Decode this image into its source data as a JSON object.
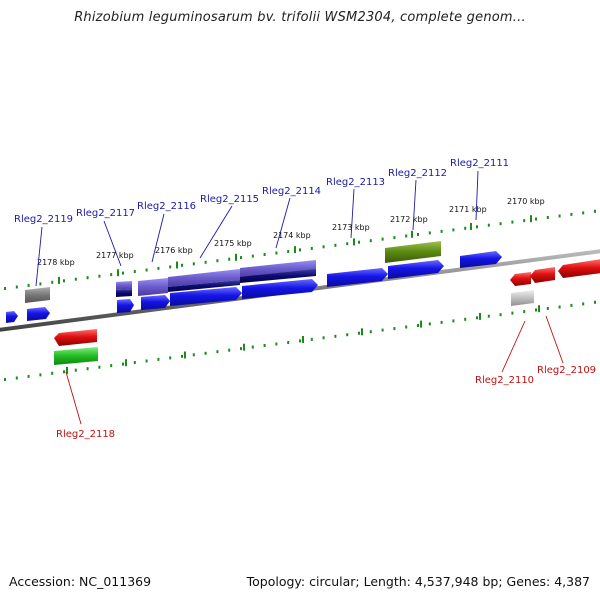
{
  "title": "Rhizobium leguminosarum bv. trifolii WSM2304, complete genom...",
  "footer": {
    "accession": "Accession: NC_011369",
    "summary": "Topology: circular; Length: 4,537,948 bp; Genes: 4,387"
  },
  "colors": {
    "plus_gene": "#1414e6",
    "plus_gene_dark": "#0a0a70",
    "plus_gene_light": "#6a5acd",
    "minus_gene": "#e01010",
    "rrna_gene": "#5a8a10",
    "green_gene": "#22bb22",
    "pseudo_gray": "#777777",
    "tick": "#1e8a1e",
    "label_plus": "#1a1aa8",
    "label_minus": "#c01010"
  },
  "ticks": [
    {
      "label": "2178 kbp"
    },
    {
      "label": "2177 kbp"
    },
    {
      "label": "2176 kbp"
    },
    {
      "label": "2175 kbp"
    },
    {
      "label": "2174 kbp"
    },
    {
      "label": "2173 kbp"
    },
    {
      "label": "2172 kbp"
    },
    {
      "label": "2171 kbp"
    },
    {
      "label": "2170 kbp"
    }
  ],
  "genes_plus": [
    {
      "locus": "Rleg2_2119"
    },
    {
      "locus": "Rleg2_2117"
    },
    {
      "locus": "Rleg2_2116"
    },
    {
      "locus": "Rleg2_2115"
    },
    {
      "locus": "Rleg2_2114"
    },
    {
      "locus": "Rleg2_2113"
    },
    {
      "locus": "Rleg2_2112"
    },
    {
      "locus": "Rleg2_2111"
    }
  ],
  "genes_minus": [
    {
      "locus": "Rleg2_2118"
    },
    {
      "locus": "Rleg2_2110"
    },
    {
      "locus": "Rleg2_2109"
    }
  ]
}
